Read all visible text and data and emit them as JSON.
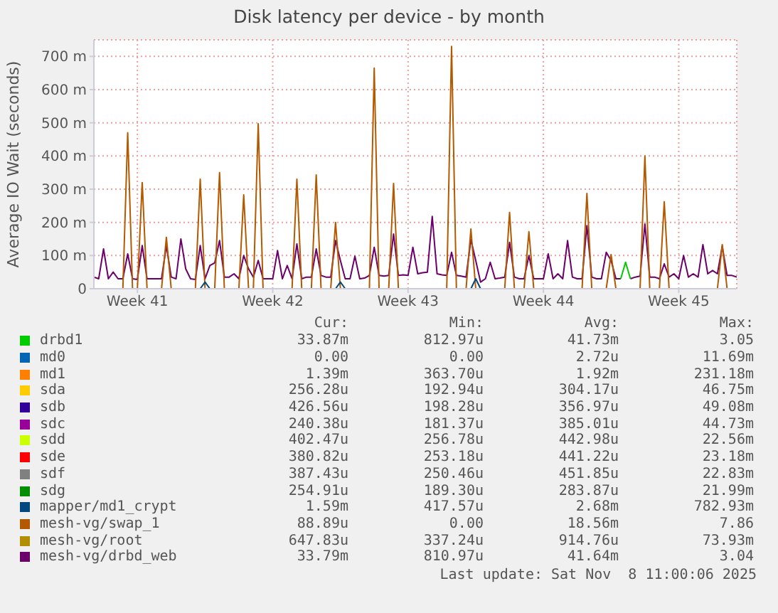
{
  "chart_data": {
    "type": "line",
    "title": "Disk latency per device - by month",
    "ylabel": "Average IO Wait (seconds)",
    "categories": [
      null,
      null,
      null,
      null,
      null,
      null,
      null,
      null,
      null,
      "Week 41",
      null,
      null,
      null,
      null,
      null,
      null,
      null,
      null,
      null,
      null,
      null,
      null,
      null,
      null,
      null,
      null,
      null,
      null,
      null,
      null,
      null,
      null,
      null,
      null,
      null,
      null,
      null,
      "Week 42",
      null,
      null,
      null,
      null,
      null,
      null,
      null,
      null,
      null,
      null,
      null,
      null,
      null,
      null,
      null,
      null,
      null,
      null,
      null,
      null,
      null,
      null,
      null,
      null,
      null,
      null,
      null,
      "Week 43",
      null,
      null,
      null,
      null,
      null,
      null,
      null,
      null,
      null,
      null,
      null,
      null,
      null,
      null,
      null,
      null,
      null,
      null,
      null,
      null,
      null,
      null,
      null,
      null,
      null,
      null,
      null,
      "Week 44",
      null,
      null,
      null,
      null,
      null,
      null,
      null,
      null,
      null,
      null,
      null,
      null,
      null,
      null,
      null,
      null,
      null,
      null,
      null,
      null,
      null,
      null,
      null,
      null,
      null,
      null,
      null,
      "Week 45",
      null,
      null,
      null,
      null,
      null,
      null,
      null,
      null,
      null,
      null,
      null,
      null
    ],
    "ylim": [
      0,
      750
    ],
    "yticks": [
      0,
      {
        "value": 100,
        "label": "100 m"
      },
      {
        "value": 200,
        "label": "200 m"
      },
      {
        "value": 300,
        "label": "300 m"
      },
      {
        "value": 400,
        "label": "400 m"
      },
      {
        "value": 500,
        "label": "500 m"
      },
      {
        "value": 600,
        "label": "600 m"
      },
      {
        "value": 700,
        "label": "700 m"
      }
    ],
    "grid": true,
    "legend": "bottom",
    "marker": "none",
    "line_style": "solid",
    "series": [
      {
        "name": "drbd1",
        "color": "#00cc00",
        "values": [
          null,
          null,
          null,
          null,
          null,
          null,
          null,
          null,
          null,
          null,
          null,
          null,
          null,
          null,
          null,
          null,
          null,
          null,
          null,
          null,
          null,
          null,
          null,
          null,
          null,
          null,
          null,
          null,
          null,
          null,
          null,
          null,
          null,
          null,
          null,
          null,
          null,
          null,
          null,
          null,
          null,
          null,
          null,
          null,
          null,
          null,
          null,
          null,
          null,
          null,
          null,
          null,
          null,
          null,
          null,
          null,
          null,
          null,
          null,
          null,
          null,
          null,
          null,
          null,
          null,
          null,
          null,
          null,
          null,
          null,
          null,
          null,
          null,
          null,
          null,
          null,
          null,
          null,
          null,
          null,
          null,
          null,
          null,
          null,
          null,
          null,
          null,
          null,
          null,
          null,
          null,
          null,
          null,
          null,
          null,
          null,
          null,
          null,
          null,
          null,
          null,
          null,
          null,
          null,
          null,
          null,
          null,
          null,
          null,
          30,
          80,
          30,
          null,
          null,
          null,
          null,
          null,
          null,
          null,
          null,
          null,
          null,
          null,
          null,
          null,
          null,
          null,
          null,
          null,
          null,
          null,
          null,
          null,
          null
        ]
      },
      {
        "name": "md0",
        "color": "#0066b3",
        "values": [
          null,
          null,
          null,
          null,
          null,
          null,
          null,
          null,
          null,
          null,
          null,
          null,
          null,
          null,
          null,
          null,
          null,
          null,
          null,
          null,
          null,
          null,
          null,
          null,
          null,
          null,
          null,
          null,
          null,
          null,
          null,
          null,
          null,
          null,
          null,
          null,
          null,
          null,
          null,
          null,
          null,
          null,
          null,
          null,
          null,
          null,
          null,
          null,
          null,
          null,
          null,
          null,
          null,
          null,
          null,
          null,
          null,
          null,
          null,
          null,
          null,
          null,
          null,
          null,
          null,
          null,
          null,
          null,
          null,
          null,
          null,
          null,
          null,
          null,
          null,
          null,
          null,
          null,
          null,
          null,
          null,
          null,
          null,
          null,
          null,
          null,
          null,
          null,
          null,
          null,
          null,
          null,
          null,
          null,
          null,
          null,
          null,
          null,
          null,
          null,
          null,
          null,
          null,
          null,
          null,
          null,
          null,
          null,
          null,
          null,
          null,
          null,
          null,
          null,
          null,
          null,
          null,
          null,
          null,
          null,
          null,
          null,
          null,
          null,
          null,
          null,
          null,
          null,
          null,
          null,
          null,
          null,
          null,
          null
        ]
      },
      {
        "name": "md1",
        "color": "#ff8000",
        "values": [
          null,
          null,
          null,
          null,
          null,
          null,
          null,
          null,
          null,
          null,
          null,
          null,
          null,
          null,
          null,
          null,
          null,
          null,
          null,
          null,
          null,
          null,
          null,
          null,
          null,
          null,
          null,
          null,
          null,
          null,
          null,
          null,
          null,
          null,
          null,
          null,
          null,
          null,
          null,
          null,
          null,
          null,
          null,
          null,
          null,
          null,
          null,
          null,
          null,
          null,
          null,
          null,
          null,
          null,
          null,
          null,
          null,
          null,
          null,
          null,
          null,
          null,
          null,
          null,
          null,
          null,
          null,
          null,
          null,
          null,
          null,
          null,
          null,
          null,
          null,
          null,
          null,
          null,
          null,
          null,
          null,
          null,
          null,
          null,
          null,
          null,
          null,
          null,
          null,
          null,
          null,
          null,
          null,
          null,
          null,
          null,
          null,
          null,
          null,
          null,
          null,
          null,
          null,
          null,
          null,
          null,
          null,
          null,
          null,
          null,
          null,
          null,
          null,
          null,
          null,
          null,
          null,
          null,
          null,
          null,
          null,
          null,
          null,
          null,
          null,
          null,
          null,
          null,
          null,
          null,
          null,
          null,
          null,
          null
        ]
      },
      {
        "name": "sda",
        "color": "#ffcc00",
        "values": [
          null,
          null,
          null,
          null,
          null,
          null,
          null,
          null,
          null,
          null,
          null,
          null,
          null,
          null,
          null,
          null,
          null,
          null,
          null,
          null,
          null,
          null,
          null,
          null,
          null,
          null,
          null,
          null,
          null,
          null,
          null,
          null,
          null,
          null,
          null,
          null,
          null,
          null,
          null,
          null,
          null,
          null,
          null,
          null,
          null,
          null,
          null,
          null,
          null,
          null,
          null,
          null,
          null,
          null,
          null,
          null,
          null,
          null,
          null,
          null,
          null,
          null,
          null,
          null,
          null,
          null,
          null,
          null,
          null,
          null,
          null,
          null,
          null,
          null,
          null,
          null,
          null,
          null,
          null,
          null,
          null,
          null,
          null,
          null,
          null,
          null,
          null,
          null,
          null,
          null,
          null,
          null,
          null,
          null,
          null,
          null,
          null,
          null,
          null,
          null,
          null,
          null,
          null,
          null,
          null,
          null,
          null,
          null,
          null,
          null,
          null,
          null,
          null,
          null,
          null,
          null,
          null,
          null,
          null,
          null,
          null,
          null,
          null,
          null,
          null,
          null,
          null,
          null,
          null,
          null,
          null,
          null,
          null,
          null
        ]
      },
      {
        "name": "sdb",
        "color": "#330099",
        "values": [
          null,
          null,
          null,
          null,
          null,
          null,
          null,
          null,
          null,
          null,
          null,
          null,
          null,
          null,
          null,
          null,
          null,
          null,
          null,
          null,
          null,
          null,
          null,
          null,
          null,
          null,
          null,
          null,
          null,
          null,
          null,
          null,
          null,
          null,
          null,
          null,
          null,
          null,
          null,
          null,
          null,
          null,
          null,
          null,
          null,
          null,
          null,
          null,
          null,
          null,
          null,
          null,
          null,
          null,
          null,
          null,
          null,
          null,
          null,
          null,
          null,
          null,
          null,
          null,
          null,
          null,
          null,
          null,
          null,
          null,
          null,
          null,
          null,
          null,
          null,
          null,
          null,
          null,
          null,
          null,
          null,
          null,
          null,
          null,
          null,
          null,
          null,
          null,
          null,
          null,
          null,
          null,
          null,
          null,
          null,
          null,
          null,
          null,
          null,
          null,
          null,
          null,
          null,
          null,
          null,
          null,
          null,
          null,
          null,
          null,
          null,
          null,
          null,
          null,
          null,
          null,
          null,
          null,
          null,
          null,
          null,
          null,
          null,
          null,
          null,
          null,
          null,
          null,
          null,
          null,
          null,
          null,
          null,
          null
        ]
      },
      {
        "name": "sdc",
        "color": "#990099",
        "values": [
          null,
          null,
          null,
          null,
          null,
          null,
          null,
          null,
          null,
          null,
          null,
          null,
          null,
          null,
          null,
          null,
          null,
          null,
          null,
          null,
          null,
          null,
          null,
          null,
          null,
          null,
          null,
          null,
          null,
          null,
          null,
          null,
          null,
          null,
          null,
          null,
          null,
          null,
          null,
          null,
          null,
          null,
          null,
          null,
          null,
          null,
          null,
          null,
          null,
          null,
          null,
          null,
          null,
          null,
          null,
          null,
          null,
          null,
          null,
          null,
          null,
          null,
          null,
          null,
          null,
          null,
          null,
          null,
          null,
          null,
          null,
          null,
          null,
          null,
          null,
          null,
          null,
          null,
          null,
          null,
          null,
          null,
          null,
          null,
          null,
          null,
          null,
          null,
          null,
          null,
          null,
          null,
          null,
          null,
          null,
          null,
          null,
          null,
          null,
          null,
          null,
          null,
          null,
          null,
          null,
          null,
          null,
          null,
          null,
          null,
          null,
          null,
          null,
          null,
          null,
          null,
          null,
          null,
          null,
          null,
          null,
          null,
          null,
          null,
          null,
          null,
          null,
          null,
          null,
          null,
          null,
          null,
          null,
          null
        ]
      },
      {
        "name": "sdd",
        "color": "#ccff00",
        "values": [
          null,
          null,
          null,
          null,
          null,
          null,
          null,
          null,
          null,
          null,
          null,
          null,
          null,
          null,
          null,
          null,
          null,
          null,
          null,
          null,
          null,
          null,
          null,
          null,
          null,
          null,
          null,
          null,
          null,
          null,
          null,
          null,
          null,
          null,
          null,
          null,
          null,
          null,
          null,
          null,
          null,
          null,
          null,
          null,
          null,
          null,
          null,
          null,
          null,
          null,
          null,
          null,
          null,
          null,
          null,
          null,
          null,
          null,
          null,
          null,
          null,
          null,
          null,
          null,
          null,
          null,
          null,
          null,
          null,
          null,
          null,
          null,
          null,
          null,
          null,
          null,
          null,
          null,
          null,
          null,
          null,
          null,
          null,
          null,
          null,
          null,
          null,
          null,
          null,
          null,
          null,
          null,
          null,
          null,
          null,
          null,
          null,
          null,
          null,
          null,
          null,
          null,
          null,
          null,
          null,
          null,
          null,
          null,
          null,
          null,
          null,
          null,
          null,
          null,
          null,
          null,
          null,
          null,
          null,
          null,
          null,
          null,
          null,
          null,
          null,
          null,
          null,
          null,
          null,
          null,
          null,
          null,
          null,
          null
        ]
      },
      {
        "name": "sde",
        "color": "#ff0000",
        "values": [
          null,
          null,
          null,
          null,
          null,
          null,
          null,
          null,
          null,
          null,
          null,
          null,
          null,
          null,
          null,
          null,
          null,
          null,
          null,
          null,
          null,
          null,
          null,
          null,
          null,
          null,
          null,
          null,
          null,
          null,
          null,
          null,
          null,
          null,
          null,
          null,
          null,
          null,
          null,
          null,
          null,
          null,
          null,
          null,
          null,
          null,
          null,
          null,
          null,
          null,
          null,
          null,
          null,
          null,
          null,
          null,
          null,
          null,
          null,
          null,
          null,
          null,
          null,
          null,
          null,
          null,
          null,
          null,
          null,
          null,
          null,
          null,
          null,
          null,
          null,
          null,
          null,
          null,
          null,
          null,
          null,
          null,
          null,
          null,
          null,
          null,
          null,
          null,
          null,
          null,
          null,
          null,
          null,
          null,
          null,
          null,
          null,
          null,
          null,
          null,
          null,
          null,
          null,
          null,
          null,
          null,
          null,
          null,
          null,
          null,
          null,
          null,
          null,
          null,
          null,
          null,
          null,
          null,
          null,
          null,
          null,
          null,
          null,
          null,
          null,
          null,
          null,
          null,
          null,
          null,
          null,
          null,
          null,
          null
        ]
      },
      {
        "name": "sdf",
        "color": "#808080",
        "values": [
          null,
          null,
          null,
          null,
          null,
          null,
          null,
          null,
          null,
          null,
          null,
          null,
          null,
          null,
          null,
          null,
          null,
          null,
          null,
          null,
          null,
          null,
          null,
          null,
          null,
          null,
          null,
          null,
          null,
          null,
          null,
          null,
          null,
          null,
          null,
          null,
          null,
          null,
          null,
          null,
          null,
          null,
          null,
          null,
          null,
          null,
          null,
          null,
          null,
          null,
          null,
          null,
          null,
          null,
          null,
          null,
          null,
          null,
          null,
          null,
          null,
          null,
          null,
          null,
          null,
          null,
          null,
          null,
          null,
          null,
          null,
          null,
          null,
          null,
          null,
          null,
          null,
          null,
          null,
          null,
          null,
          null,
          null,
          null,
          null,
          null,
          null,
          null,
          null,
          null,
          null,
          null,
          null,
          null,
          null,
          null,
          null,
          null,
          null,
          null,
          null,
          null,
          null,
          null,
          null,
          null,
          null,
          null,
          null,
          null,
          null,
          null,
          null,
          null,
          null,
          null,
          null,
          null,
          null,
          null,
          null,
          null,
          null,
          null,
          null,
          null,
          null,
          null,
          null,
          null,
          null,
          null,
          null,
          null
        ]
      },
      {
        "name": "sdg",
        "color": "#008f00",
        "values": [
          null,
          null,
          null,
          null,
          null,
          null,
          null,
          null,
          null,
          null,
          null,
          null,
          null,
          null,
          null,
          null,
          null,
          null,
          null,
          null,
          null,
          null,
          null,
          null,
          null,
          null,
          null,
          null,
          null,
          null,
          null,
          null,
          null,
          null,
          null,
          null,
          null,
          null,
          null,
          null,
          null,
          null,
          null,
          null,
          null,
          null,
          null,
          null,
          null,
          null,
          null,
          null,
          null,
          null,
          null,
          null,
          null,
          null,
          null,
          null,
          null,
          null,
          null,
          null,
          null,
          null,
          null,
          null,
          null,
          null,
          null,
          null,
          null,
          null,
          null,
          null,
          null,
          null,
          null,
          null,
          null,
          null,
          null,
          null,
          null,
          null,
          null,
          null,
          null,
          null,
          null,
          null,
          null,
          null,
          null,
          null,
          null,
          null,
          null,
          null,
          null,
          null,
          null,
          null,
          null,
          null,
          null,
          null,
          null,
          null,
          null,
          null,
          null,
          null,
          null,
          null,
          null,
          null,
          null,
          null,
          null,
          null,
          null,
          null,
          null,
          null,
          null,
          null,
          null,
          null,
          null,
          null,
          null,
          null
        ]
      },
      {
        "name": "mapper/md1_crypt",
        "color": "#00487d",
        "values": [
          null,
          null,
          null,
          null,
          null,
          null,
          null,
          null,
          null,
          null,
          null,
          null,
          null,
          null,
          null,
          null,
          null,
          null,
          null,
          null,
          null,
          null,
          0,
          20,
          0,
          null,
          null,
          null,
          null,
          null,
          null,
          null,
          null,
          null,
          null,
          null,
          null,
          null,
          null,
          null,
          null,
          null,
          null,
          null,
          null,
          null,
          null,
          null,
          null,
          null,
          0,
          20,
          0,
          null,
          null,
          null,
          null,
          null,
          null,
          null,
          null,
          null,
          null,
          null,
          null,
          null,
          null,
          null,
          null,
          null,
          null,
          null,
          null,
          null,
          null,
          null,
          null,
          null,
          0,
          30,
          0,
          null,
          null,
          null,
          null,
          null,
          null,
          null,
          null,
          null,
          null,
          null,
          null,
          null,
          null,
          null,
          null,
          null,
          null,
          null,
          null,
          null,
          null,
          null,
          null,
          null,
          null,
          null,
          null,
          null,
          null,
          null,
          null,
          null,
          null,
          null,
          null,
          null,
          null,
          null,
          null,
          null,
          null,
          null,
          null,
          null,
          null,
          null,
          null,
          null,
          null,
          null,
          null,
          null
        ]
      },
      {
        "name": "mesh-vg/swap_1",
        "color": "#b35a00",
        "values": [
          null,
          null,
          null,
          null,
          null,
          null,
          0,
          470,
          0,
          0,
          320,
          0,
          null,
          null,
          0,
          155,
          0,
          null,
          null,
          null,
          null,
          0,
          330,
          0,
          null,
          0,
          350,
          0,
          null,
          null,
          0,
          283,
          0,
          0,
          497,
          0,
          null,
          null,
          null,
          null,
          null,
          0,
          330,
          0,
          null,
          0,
          343,
          0,
          null,
          0,
          200,
          0,
          null,
          null,
          null,
          null,
          null,
          0,
          665,
          0,
          null,
          0,
          317,
          0,
          null,
          null,
          null,
          null,
          null,
          null,
          null,
          null,
          null,
          0,
          730,
          0,
          null,
          0,
          180,
          0,
          null,
          null,
          null,
          null,
          null,
          0,
          230,
          0,
          null,
          0,
          172,
          0,
          null,
          null,
          null,
          null,
          null,
          null,
          null,
          null,
          null,
          0,
          287,
          0,
          null,
          null,
          0,
          103,
          0,
          null,
          null,
          null,
          null,
          0,
          400,
          0,
          null,
          0,
          262,
          0,
          null,
          null,
          null,
          null,
          null,
          null,
          null,
          null,
          null,
          0,
          133,
          0,
          null,
          null
        ]
      },
      {
        "name": "mesh-vg/root",
        "color": "#b38f00",
        "values": [
          null,
          null,
          null,
          null,
          null,
          null,
          null,
          null,
          null,
          null,
          null,
          null,
          null,
          null,
          null,
          null,
          null,
          null,
          null,
          null,
          null,
          null,
          null,
          null,
          null,
          null,
          null,
          null,
          null,
          null,
          null,
          null,
          null,
          null,
          null,
          null,
          null,
          null,
          null,
          null,
          null,
          null,
          null,
          null,
          null,
          null,
          null,
          null,
          null,
          null,
          null,
          null,
          null,
          null,
          null,
          null,
          null,
          null,
          null,
          null,
          null,
          null,
          null,
          null,
          null,
          null,
          null,
          null,
          null,
          null,
          null,
          null,
          null,
          null,
          null,
          null,
          null,
          null,
          null,
          null,
          null,
          null,
          null,
          null,
          null,
          null,
          null,
          null,
          null,
          null,
          null,
          null,
          null,
          null,
          null,
          null,
          null,
          null,
          null,
          null,
          null,
          null,
          null,
          null,
          null,
          null,
          null,
          null,
          null,
          null,
          null,
          null,
          null,
          null,
          null,
          null,
          null,
          null,
          null,
          null,
          null,
          null,
          null,
          null,
          null,
          null,
          null,
          null,
          null,
          null,
          null,
          null,
          null,
          null
        ]
      },
      {
        "name": "mesh-vg/drbd_web",
        "color": "#6b006b",
        "values": [
          35,
          30,
          120,
          30,
          50,
          30,
          30,
          105,
          30,
          28,
          130,
          30,
          30,
          30,
          30,
          130,
          35,
          30,
          150,
          60,
          30,
          28,
          130,
          30,
          70,
          78,
          145,
          35,
          35,
          45,
          30,
          100,
          60,
          35,
          85,
          30,
          30,
          30,
          115,
          30,
          70,
          30,
          135,
          30,
          35,
          35,
          120,
          40,
          35,
          35,
          145,
          85,
          30,
          30,
          98,
          30,
          32,
          40,
          125,
          40,
          38,
          40,
          165,
          40,
          42,
          40,
          125,
          45,
          48,
          50,
          218,
          45,
          42,
          40,
          110,
          40,
          38,
          35,
          148,
          85,
          20,
          30,
          80,
          30,
          32,
          35,
          140,
          35,
          30,
          30,
          100,
          30,
          30,
          30,
          105,
          30,
          45,
          30,
          145,
          35,
          30,
          30,
          190,
          35,
          30,
          30,
          110,
          85,
          30,
          30,
          null,
          30,
          35,
          38,
          195,
          35,
          35,
          30,
          75,
          35,
          45,
          30,
          100,
          35,
          45,
          35,
          133,
          45,
          55,
          45,
          128,
          40,
          40,
          35
        ]
      }
    ],
    "annotations": [
      "Cur:",
      "Min:",
      "Avg:",
      "Max:",
      "33.87m",
      "812.97u",
      "41.73m",
      "3.05",
      "0.00",
      "0.00",
      "2.72u",
      "11.69m",
      "1.39m",
      "363.70u",
      "1.92m",
      "231.18m",
      "256.28u",
      "192.94u",
      "304.17u",
      "46.75m",
      "426.56u",
      "198.28u",
      "356.97u",
      "49.08m",
      "240.38u",
      "181.37u",
      "385.01u",
      "44.73m",
      "402.47u",
      "256.78u",
      "442.98u",
      "22.56m",
      "380.82u",
      "253.18u",
      "441.22u",
      "23.18m",
      "387.43u",
      "250.46u",
      "451.85u",
      "22.83m",
      "254.91u",
      "189.30u",
      "283.87u",
      "21.99m",
      "1.59m",
      "417.57u",
      "2.68m",
      "782.93m",
      "88.89u",
      "0.00",
      "18.56m",
      "7.86",
      "647.83u",
      "337.24u",
      "914.76u",
      "73.93m",
      "33.79m",
      "810.97u",
      "41.64m",
      "3.04",
      "Last update: Sat Nov  8 11:00:06 2025"
    ]
  }
}
